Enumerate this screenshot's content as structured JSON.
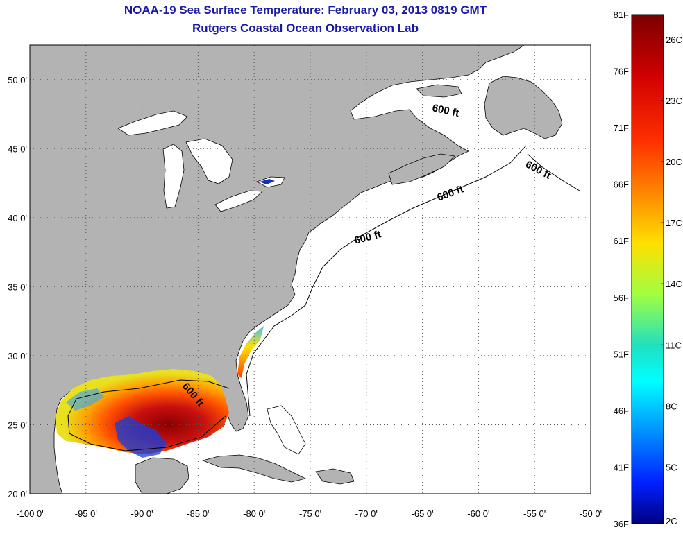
{
  "header": {
    "title": "NOAA-19 Sea Surface Temperature:  February 03, 2013 0819 GMT",
    "subtitle": "Rutgers Coastal Ocean Observation Lab"
  },
  "map": {
    "lon_range": [
      -100,
      -50
    ],
    "lat_range": [
      20,
      52.5
    ],
    "lon_ticks": [
      {
        "value": -100,
        "label": "-100 0'"
      },
      {
        "value": -95,
        "label": "-95 0'"
      },
      {
        "value": -90,
        "label": "-90 0'"
      },
      {
        "value": -85,
        "label": "-85 0'"
      },
      {
        "value": -80,
        "label": "-80 0'"
      },
      {
        "value": -75,
        "label": "-75 0'"
      },
      {
        "value": -70,
        "label": "-70 0'"
      },
      {
        "value": -65,
        "label": "-65 0'"
      },
      {
        "value": -60,
        "label": "-60 0'"
      },
      {
        "value": -55,
        "label": "-55 0'"
      },
      {
        "value": -50,
        "label": "-50 0'"
      }
    ],
    "lat_ticks": [
      {
        "value": 20,
        "label": "20 0'"
      },
      {
        "value": 25,
        "label": "25 0'"
      },
      {
        "value": 30,
        "label": "30 0'"
      },
      {
        "value": 35,
        "label": "35 0'"
      },
      {
        "value": 40,
        "label": "40 0'"
      },
      {
        "value": 45,
        "label": "45 0'"
      },
      {
        "value": 50,
        "label": "50 0'"
      }
    ],
    "contour_label": "600 ft",
    "grid": "dotted",
    "land_color": "#b3b3b3",
    "ocean_color": "#ffffff"
  },
  "colorbar": {
    "fahrenheit_labels": [
      "81F",
      "76F",
      "71F",
      "66F",
      "61F",
      "56F",
      "51F",
      "46F",
      "41F",
      "36F"
    ],
    "celsius_labels": [
      "26C",
      "23C",
      "20C",
      "17C",
      "14C",
      "11C",
      "8C",
      "5C",
      "2C"
    ],
    "colors": [
      "#7a0000",
      "#ff0000",
      "#ff8c00",
      "#ffff00",
      "#40ff80",
      "#00ffff",
      "#0080ff",
      "#0000ff",
      "#00007f"
    ]
  }
}
